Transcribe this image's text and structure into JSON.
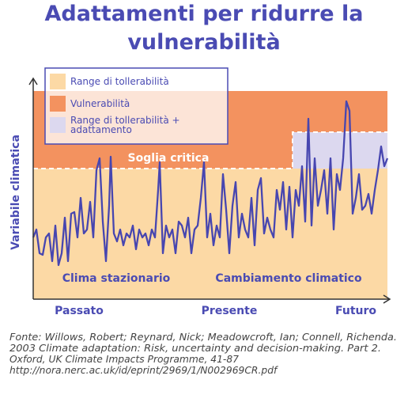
{
  "title": {
    "lines": [
      "Adattamenti per ridurre la",
      "vulnerabilità"
    ]
  },
  "legend": {
    "items": [
      {
        "label": "Range di tollerabilità"
      },
      {
        "label": "Vulnerabilità"
      },
      {
        "label_lines": [
          "Range di tollerabilità +",
          "adattamento"
        ]
      }
    ]
  },
  "threshold_label": "Soglia critica",
  "y_axis_label": "Variabile climatica",
  "regions": [
    "Clima stazionario",
    "Cambiamento climatico"
  ],
  "x_axis_labels": [
    "Passato",
    "Presente",
    "Futuro"
  ],
  "source": {
    "lines": [
      "Fonte: Willows, Robert; Reynard, Nick; Meadowcroft, Ian; Connell, Richenda.",
      "2003 Climate adaptation: Risk, uncertainty and decision-making. Part 2.",
      "Oxford, UK Climate Impacts Programme, 41-87",
      "http://nora.nerc.ac.uk/id/eprint/2969/1/N002969CR.pdf"
    ]
  }
}
